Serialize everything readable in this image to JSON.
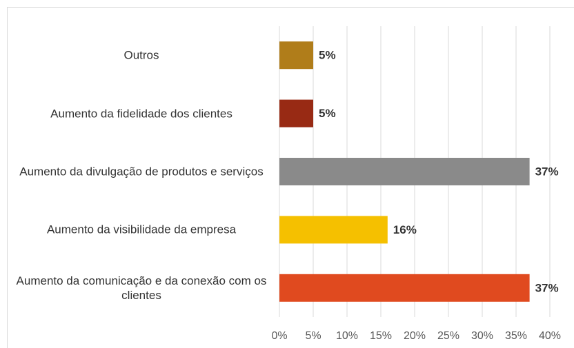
{
  "chart_data": {
    "type": "hbar",
    "categories": [
      "Outros",
      "Aumento da fidelidade dos clientes",
      "Aumento da divulgação de produtos e serviços",
      "Aumento da visibilidade da empresa",
      "Aumento da comunicação e da conexão com os clientes"
    ],
    "values": [
      5,
      5,
      37,
      16,
      37
    ],
    "value_labels": [
      "5%",
      "5%",
      "37%",
      "16%",
      "37%"
    ],
    "colors": [
      "#b07d1a",
      "#982a14",
      "#8a8a8a",
      "#f5c000",
      "#e04a1f"
    ],
    "xlim": [
      0,
      40
    ],
    "xticks": [
      {
        "value": 0,
        "label": "0%"
      },
      {
        "value": 5,
        "label": "5%"
      },
      {
        "value": 10,
        "label": "10%"
      },
      {
        "value": 15,
        "label": "15%"
      },
      {
        "value": 20,
        "label": "20%"
      },
      {
        "value": 25,
        "label": "25%"
      },
      {
        "value": 30,
        "label": "30%"
      },
      {
        "value": 35,
        "label": "35%"
      },
      {
        "value": 40,
        "label": "40%"
      }
    ],
    "grid": true
  }
}
